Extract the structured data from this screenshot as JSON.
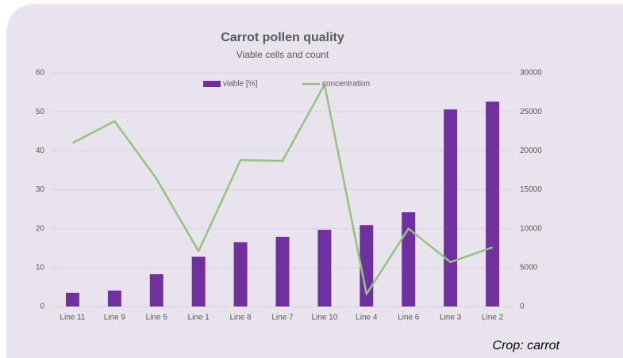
{
  "chart_data": {
    "type": "bar_line",
    "title": "Carrot pollen quality",
    "subtitle": "Viable cells and count",
    "categories": [
      "Line 11",
      "Line 9",
      "Line 5",
      "Line 1",
      "Line 8",
      "Line 7",
      "Line 10",
      "Line 4",
      "Line 6",
      "Line 3",
      "Line 2"
    ],
    "series": [
      {
        "name": "viable [%]",
        "type": "bar",
        "color": "#7030a0",
        "values": [
          3.5,
          4.1,
          8.3,
          12.8,
          16.5,
          17.9,
          19.7,
          20.9,
          24.2,
          50.6,
          52.6
        ]
      },
      {
        "name": "concentration",
        "type": "line",
        "axis": "y2",
        "color": "#93c47d",
        "values": [
          21000,
          23800,
          16400,
          7100,
          18800,
          18700,
          28500,
          1600,
          10000,
          5700,
          7600
        ]
      }
    ],
    "ylim": [
      0,
      60
    ],
    "yticks": [
      0,
      10,
      20,
      30,
      40,
      50,
      60
    ],
    "y2lim": [
      0,
      30000
    ],
    "y2ticks": [
      0,
      5000,
      10000,
      15000,
      20000,
      25000,
      30000
    ],
    "grid": true,
    "legend": "top",
    "annotation": "Crop: carrot"
  }
}
